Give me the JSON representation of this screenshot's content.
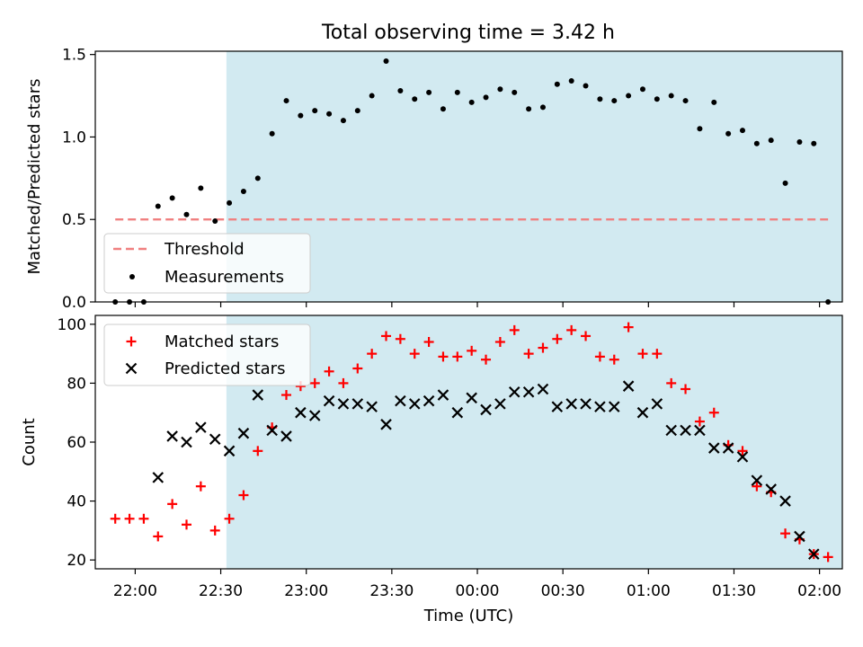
{
  "figure_title": "Total observing time = 3.42 h",
  "colors": {
    "shade": "#add8e6",
    "threshold": "#f08080",
    "measurement": "#000000",
    "matched": "#ff0000",
    "predicted": "#000000"
  },
  "chart_data": [
    {
      "type": "scatter",
      "title": "Total observing time = 3.42 h",
      "xlabel": "",
      "ylabel": "Matched/Predicted stars",
      "xlim": [
        "21:46",
        "02:08"
      ],
      "ylim": [
        0,
        1.52
      ],
      "yticks": [
        0.0,
        0.5,
        1.0,
        1.5
      ],
      "ytick_labels": [
        "0.0",
        "0.5",
        "1.0",
        "1.5"
      ],
      "shaded_span": [
        "22:32",
        "02:37"
      ],
      "threshold": {
        "name": "Threshold",
        "value": 0.5,
        "x_range": [
          "21:53",
          "02:03"
        ]
      },
      "legend": {
        "placement": "lower left",
        "entries": [
          "Threshold",
          "Measurements"
        ]
      },
      "series": [
        {
          "name": "Measurements",
          "marker": "dot",
          "x": [
            "21:53",
            "21:58",
            "22:03",
            "22:08",
            "22:13",
            "22:18",
            "22:23",
            "22:28",
            "22:33",
            "22:38",
            "22:43",
            "22:48",
            "22:53",
            "22:58",
            "23:03",
            "23:08",
            "23:13",
            "23:18",
            "23:23",
            "23:28",
            "23:33",
            "23:38",
            "23:43",
            "23:48",
            "23:53",
            "23:58",
            "00:03",
            "00:08",
            "00:13",
            "00:18",
            "00:23",
            "00:28",
            "00:33",
            "00:38",
            "00:43",
            "00:48",
            "00:53",
            "00:58",
            "01:03",
            "01:08",
            "01:13",
            "01:18",
            "01:23",
            "01:28",
            "01:33",
            "01:38",
            "01:43",
            "01:48",
            "01:53",
            "01:58",
            "02:03"
          ],
          "y": [
            0.0,
            0.0,
            0.0,
            0.58,
            0.63,
            0.53,
            0.69,
            0.49,
            0.6,
            0.67,
            0.75,
            1.02,
            1.22,
            1.13,
            1.16,
            1.14,
            1.1,
            1.16,
            1.25,
            1.46,
            1.28,
            1.23,
            1.27,
            1.17,
            1.27,
            1.21,
            1.24,
            1.29,
            1.27,
            1.17,
            1.18,
            1.32,
            1.34,
            1.31,
            1.23,
            1.22,
            1.25,
            1.29,
            1.23,
            1.25,
            1.22,
            1.05,
            1.21,
            1.02,
            1.04,
            0.96,
            0.98,
            0.72,
            0.97,
            0.96,
            0.0
          ]
        }
      ]
    },
    {
      "type": "scatter",
      "title": "",
      "xlabel": "Time (UTC)",
      "ylabel": "Count",
      "xlim": [
        "21:46",
        "02:08"
      ],
      "ylim": [
        17,
        103
      ],
      "yticks": [
        20,
        40,
        60,
        80,
        100
      ],
      "ytick_labels": [
        "20",
        "40",
        "60",
        "80",
        "100"
      ],
      "xticks": [
        "22:00",
        "22:30",
        "23:00",
        "23:30",
        "00:00",
        "00:30",
        "01:00",
        "01:30",
        "02:00"
      ],
      "xtick_labels": [
        "22:00",
        "22:30",
        "23:00",
        "23:30",
        "00:00",
        "00:30",
        "01:00",
        "01:30",
        "02:00"
      ],
      "shaded_span": [
        "22:32",
        "02:37"
      ],
      "legend": {
        "placement": "upper left",
        "entries": [
          "Matched stars",
          "Predicted stars"
        ]
      },
      "series": [
        {
          "name": "Matched stars",
          "marker": "plus",
          "x": [
            "21:53",
            "21:58",
            "22:03",
            "22:08",
            "22:13",
            "22:18",
            "22:23",
            "22:28",
            "22:33",
            "22:38",
            "22:43",
            "22:48",
            "22:53",
            "22:58",
            "23:03",
            "23:08",
            "23:13",
            "23:18",
            "23:23",
            "23:28",
            "23:33",
            "23:38",
            "23:43",
            "23:48",
            "23:53",
            "23:58",
            "00:03",
            "00:08",
            "00:13",
            "00:18",
            "00:23",
            "00:28",
            "00:33",
            "00:38",
            "00:43",
            "00:48",
            "00:53",
            "00:58",
            "01:03",
            "01:08",
            "01:13",
            "01:18",
            "01:23",
            "01:28",
            "01:33",
            "01:38",
            "01:43",
            "01:48",
            "01:53",
            "01:58",
            "02:03"
          ],
          "y": [
            34,
            34,
            34,
            28,
            39,
            32,
            45,
            30,
            34,
            42,
            57,
            65,
            76,
            79,
            80,
            84,
            80,
            85,
            90,
            96,
            95,
            90,
            94,
            89,
            89,
            91,
            88,
            94,
            98,
            90,
            92,
            95,
            98,
            96,
            89,
            88,
            99,
            90,
            90,
            80,
            78,
            67,
            70,
            59,
            57,
            45,
            43,
            29,
            27,
            22,
            21
          ]
        },
        {
          "name": "Predicted stars",
          "marker": "x",
          "x": [
            "22:08",
            "22:13",
            "22:18",
            "22:23",
            "22:28",
            "22:33",
            "22:38",
            "22:43",
            "22:48",
            "22:53",
            "22:58",
            "23:03",
            "23:08",
            "23:13",
            "23:18",
            "23:23",
            "23:28",
            "23:33",
            "23:38",
            "23:43",
            "23:48",
            "23:53",
            "23:58",
            "00:03",
            "00:08",
            "00:13",
            "00:18",
            "00:23",
            "00:28",
            "00:33",
            "00:38",
            "00:43",
            "00:48",
            "00:53",
            "00:58",
            "01:03",
            "01:08",
            "01:13",
            "01:18",
            "01:23",
            "01:28",
            "01:33",
            "01:38",
            "01:43",
            "01:48",
            "01:53",
            "01:58"
          ],
          "y": [
            48,
            62,
            60,
            65,
            61,
            57,
            63,
            76,
            64,
            62,
            70,
            69,
            74,
            73,
            73,
            72,
            66,
            74,
            73,
            74,
            76,
            70,
            75,
            71,
            73,
            77,
            77,
            78,
            72,
            73,
            73,
            72,
            72,
            79,
            70,
            73,
            64,
            64,
            64,
            58,
            58,
            55,
            47,
            44,
            40,
            28,
            22
          ]
        }
      ]
    }
  ]
}
